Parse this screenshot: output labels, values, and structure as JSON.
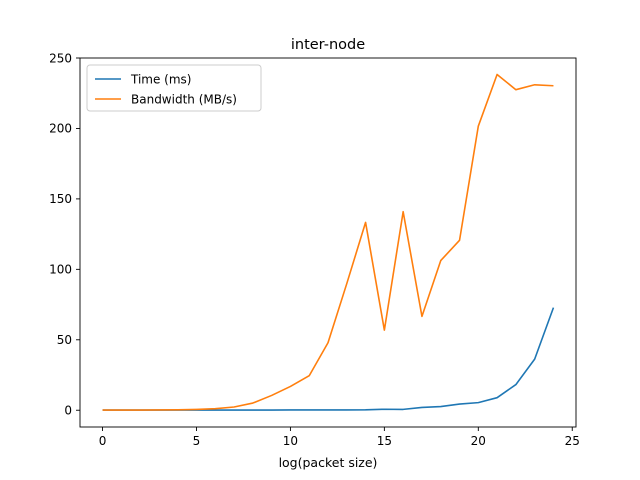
{
  "chart_data": {
    "type": "line",
    "title": "inter-node",
    "xlabel": "log(packet size)",
    "ylabel": "",
    "xlim": [
      -1.2,
      25.2
    ],
    "ylim": [
      -11.9,
      250
    ],
    "xticks": [
      0,
      5,
      10,
      15,
      20,
      25
    ],
    "yticks": [
      0,
      50,
      100,
      150,
      200,
      250
    ],
    "grid": false,
    "legend_position": "top-left",
    "x": [
      0,
      1,
      2,
      3,
      4,
      5,
      6,
      7,
      8,
      9,
      10,
      11,
      12,
      13,
      14,
      15,
      16,
      17,
      18,
      19,
      20,
      21,
      22,
      23,
      24
    ],
    "series": [
      {
        "name": "Time (ms)",
        "color": "#1f77b4",
        "values": [
          0.1,
          0.1,
          0.1,
          0.1,
          0.1,
          0.1,
          0.1,
          0.1,
          0.1,
          0.1,
          0.2,
          0.2,
          0.2,
          0.2,
          0.3,
          0.7,
          0.6,
          2.0,
          2.6,
          4.4,
          5.4,
          8.9,
          18.2,
          36.3,
          72.8
        ]
      },
      {
        "name": "Bandwidth (MB/s)",
        "color": "#ff7f0e",
        "values": [
          0.1,
          0.1,
          0.1,
          0.2,
          0.3,
          0.6,
          1.1,
          2.3,
          5.1,
          10.5,
          16.9,
          24.5,
          47.9,
          89.9,
          133.3,
          56.9,
          140.9,
          66.6,
          106.2,
          120.6,
          201.6,
          238.3,
          227.5,
          231.0,
          230.3
        ]
      }
    ]
  }
}
